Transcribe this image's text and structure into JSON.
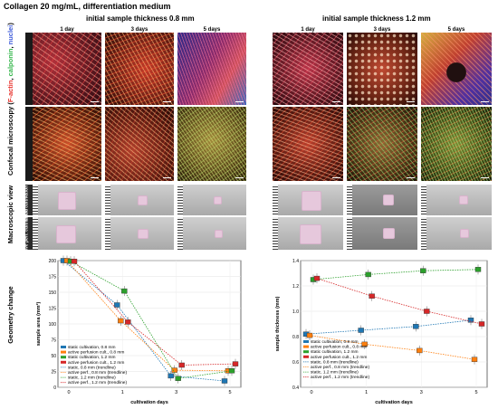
{
  "header": {
    "title": "Collagen 20 mg/mL, differentiation medium",
    "left_group_title": "initial sample thickness 0.8 mm",
    "right_group_title": "initial sample thickness 1.2 mm",
    "days": [
      "1 day",
      "3 days",
      "5 days"
    ]
  },
  "section_labels": {
    "microscopy": "Confocal microscopy (F-actin, calponin, nuclei)",
    "microscopy_parts": [
      "Confocal microscopy (",
      "F-actin",
      ", ",
      "calponin",
      ", ",
      "nuclei",
      ")"
    ],
    "macroscopic": "Macroscopic view",
    "geometry": "Geometry change"
  },
  "row_labels": {
    "static": "static cultivation",
    "perfusion": "active perfusion cultivation",
    "macro_static": "static cultivation",
    "macro_perf": "active perf. cultivation"
  },
  "colors": {
    "factin": "#e8302a",
    "calponin": "#33b54a",
    "nuclei": "#3d5bd9",
    "static_08": "#1f77b4",
    "perf_08": "#ff7f0e",
    "static_12": "#2ca02c",
    "perf_12": "#d62728"
  },
  "chart_data": [
    {
      "type": "box",
      "xlabel": "cultivation days",
      "ylabel": "sample area (mm²)",
      "ylim": [
        0,
        200
      ],
      "yticks": [
        0,
        25,
        50,
        75,
        100,
        125,
        150,
        175,
        200
      ],
      "xticks": [
        0,
        1,
        3,
        5
      ],
      "legend_position": "bottom-left",
      "series": [
        {
          "name": "static cultivation, 0.8 mm",
          "color": "#1f77b4",
          "values": [
            200,
            130,
            18,
            10
          ]
        },
        {
          "name": "active perfusion cult., 0.8 mm",
          "color": "#ff7f0e",
          "values": [
            200,
            105,
            27,
            26
          ]
        },
        {
          "name": "static cultivation, 1.2 mm",
          "color": "#2ca02c",
          "values": [
            199,
            152,
            14,
            26
          ]
        },
        {
          "name": "active perfusion cult., 1.2 mm",
          "color": "#d62728",
          "values": [
            199,
            103,
            35,
            37
          ]
        }
      ],
      "trendlines": [
        {
          "name": "static, 0.8 mm (trendline)",
          "color": "#1f77b4"
        },
        {
          "name": "active perf., 0.8 mm (trendline)",
          "color": "#ff7f0e"
        },
        {
          "name": "static, 1.2 mm (trendline)",
          "color": "#2ca02c"
        },
        {
          "name": "active perf., 1.2 mm (trendline)",
          "color": "#d62728"
        }
      ]
    },
    {
      "type": "box",
      "xlabel": "cultivation days",
      "ylabel": "sample thickness (mm)",
      "ylim": [
        0.4,
        1.4
      ],
      "yticks": [
        0.4,
        0.6,
        0.8,
        1.0,
        1.2,
        1.4
      ],
      "xticks": [
        0,
        1,
        3,
        5
      ],
      "legend_position": "bottom-left",
      "series": [
        {
          "name": "static cultivation, 0.8 mm",
          "color": "#1f77b4",
          "values": [
            0.82,
            0.85,
            0.88,
            0.93
          ]
        },
        {
          "name": "active perfusion cult., 0.8 mm",
          "color": "#ff7f0e",
          "values": [
            0.81,
            0.74,
            0.69,
            0.62
          ]
        },
        {
          "name": "static cultivation, 1.2 mm",
          "color": "#2ca02c",
          "values": [
            1.25,
            1.29,
            1.32,
            1.33
          ]
        },
        {
          "name": "active perfusion cult., 1.2 mm",
          "color": "#d62728",
          "values": [
            1.26,
            1.12,
            1.0,
            0.9
          ]
        }
      ],
      "trendlines": [
        {
          "name": "static, 0.8 mm (trendline)",
          "color": "#1f77b4"
        },
        {
          "name": "active perf., 0.8 mm (trendline)",
          "color": "#ff7f0e"
        },
        {
          "name": "static, 1.2 mm (trendline)",
          "color": "#2ca02c"
        },
        {
          "name": "active perf., 1.2 mm (trendline)",
          "color": "#d62728"
        }
      ]
    }
  ]
}
